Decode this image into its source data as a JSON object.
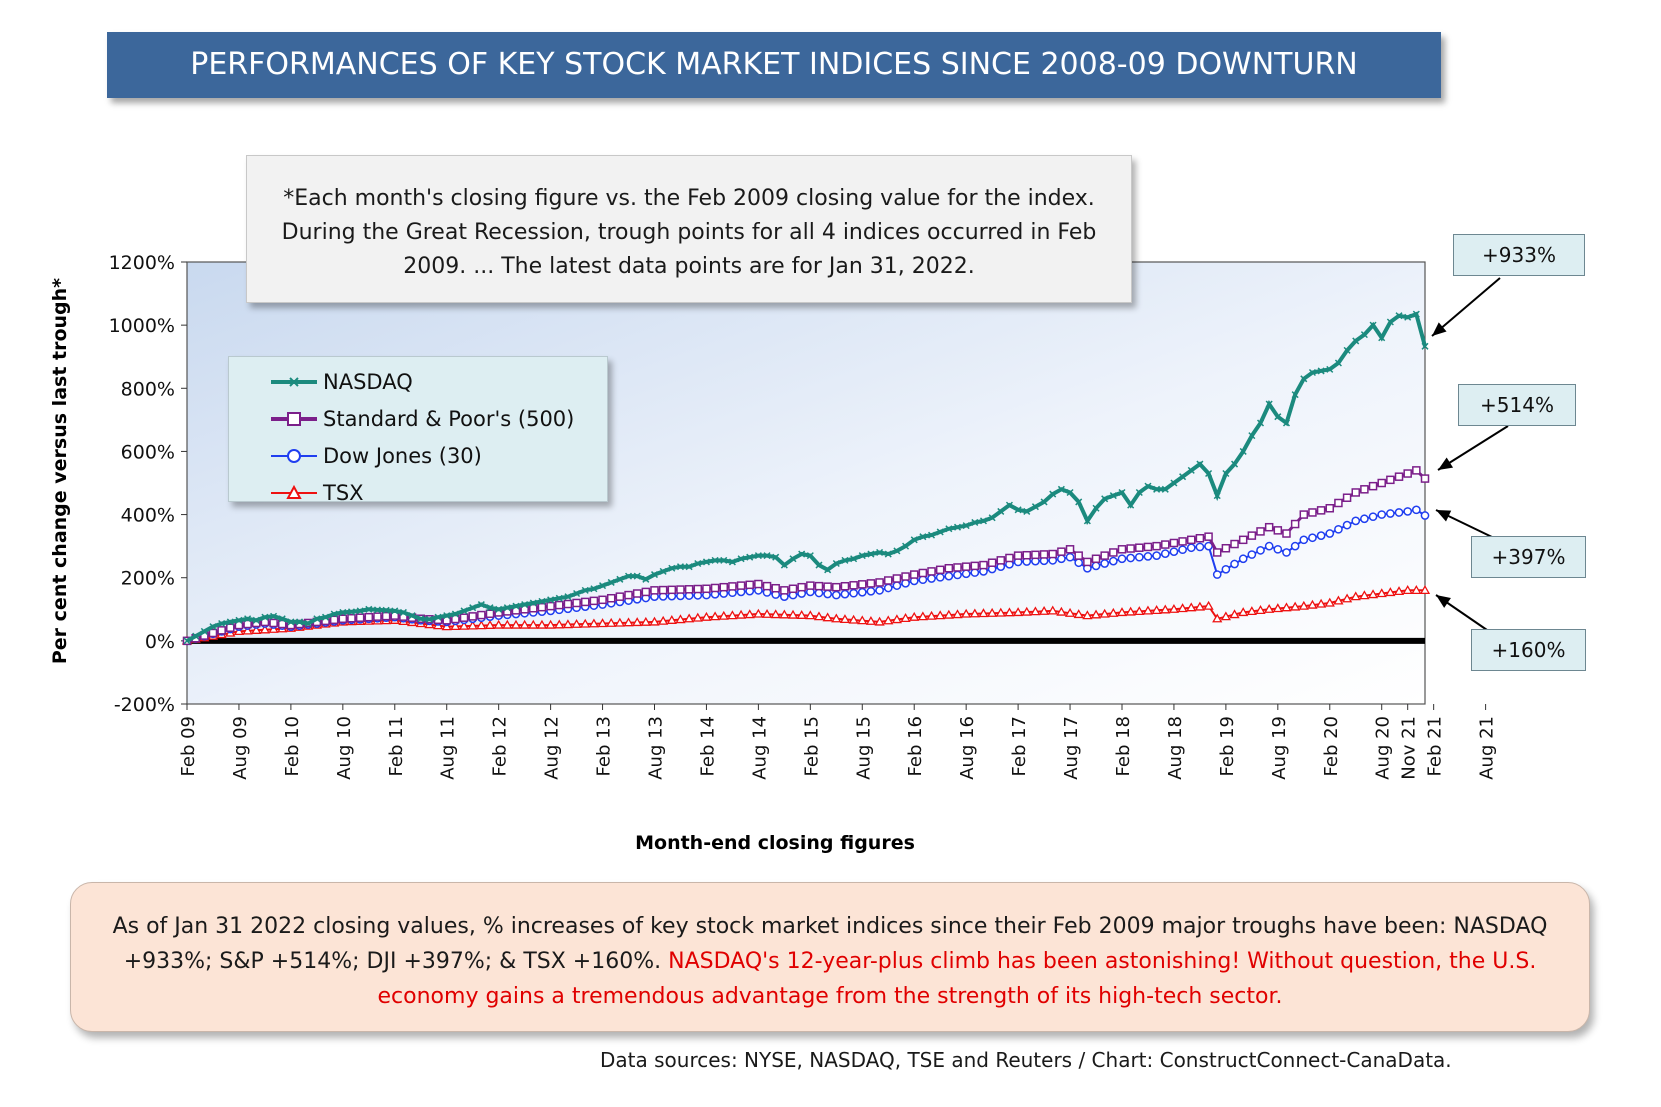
{
  "title": "PERFORMANCES OF KEY STOCK MARKET INDICES SINCE 2008-09 DOWNTURN",
  "note": "*Each month's closing figure vs. the Feb 2009 closing value for the index. During the Great Recession, trough points for all 4 indices occurred in Feb 2009. ... The latest data points are for Jan 31, 2022.",
  "summary": {
    "plain": "As of Jan 31 2022 closing values, % increases of key stock market indices since their Feb 2009 major troughs have been:  NASDAQ +933%; S&P +514%; DJI +397%; & TSX +160%.",
    "highlight": "NASDAQ's 12-year-plus climb has been astonishing! Without question, the U.S. economy gains a tremendous advantage from the strength of its high-tech sector."
  },
  "source": "Data sources: NYSE, NASDAQ, TSE and Reuters / Chart: ConstructConnect-CanaData.",
  "callouts": [
    "+933%",
    "+514%",
    "+397%",
    "+160%"
  ],
  "colors": {
    "nasdaq": "#1b8a7e",
    "sp500": "#7b1f8a",
    "dow": "#1f3ef0",
    "tsx": "#ee1111",
    "banner": "#3c679b"
  },
  "chart_data": {
    "type": "line",
    "xlabel": "Month-end closing figures",
    "ylabel": "Per cent change versus last trough*",
    "ylim": [
      -200,
      1200
    ],
    "yticks": [
      -200,
      0,
      200,
      400,
      600,
      800,
      1000,
      1200
    ],
    "ytick_labels": [
      "-200%",
      "0%",
      "200%",
      "400%",
      "600%",
      "800%",
      "1000%",
      "1200%"
    ],
    "x_start": "Feb 09",
    "x_end": "Jan 22",
    "xtick_labels": [
      "Feb 09",
      "Aug 09",
      "Feb 10",
      "Aug 10",
      "Feb 11",
      "Aug 11",
      "Feb 12",
      "Aug 12",
      "Feb 13",
      "Aug 13",
      "Feb 14",
      "Aug 14",
      "Feb 15",
      "Aug 15",
      "Feb 16",
      "Aug 16",
      "Feb 17",
      "Aug 17",
      "Feb 18",
      "Aug 18",
      "Feb 19",
      "Aug 19",
      "Feb 20",
      "Aug 20",
      "Feb 21",
      "Aug 21",
      "Nov 21"
    ],
    "legend_position": "upper-left",
    "grid": false,
    "series": [
      {
        "name": "NASDAQ",
        "marker": "x",
        "anchors": [
          [
            0,
            0
          ],
          [
            1,
            15
          ],
          [
            2,
            30
          ],
          [
            3,
            45
          ],
          [
            4,
            55
          ],
          [
            5,
            60
          ],
          [
            6,
            65
          ],
          [
            7,
            70
          ],
          [
            8,
            65
          ],
          [
            9,
            75
          ],
          [
            10,
            78
          ],
          [
            11,
            70
          ],
          [
            12,
            60
          ],
          [
            13,
            60
          ],
          [
            14,
            55
          ],
          [
            15,
            70
          ],
          [
            16,
            75
          ],
          [
            17,
            85
          ],
          [
            18,
            90
          ],
          [
            19,
            92
          ],
          [
            20,
            95
          ],
          [
            21,
            100
          ],
          [
            22,
            98
          ],
          [
            23,
            97
          ],
          [
            24,
            95
          ],
          [
            25,
            90
          ],
          [
            26,
            80
          ],
          [
            27,
            70
          ],
          [
            28,
            68
          ],
          [
            29,
            75
          ],
          [
            30,
            80
          ],
          [
            31,
            85
          ],
          [
            32,
            95
          ],
          [
            33,
            105
          ],
          [
            34,
            115
          ],
          [
            35,
            105
          ],
          [
            36,
            100
          ],
          [
            37,
            105
          ],
          [
            38,
            110
          ],
          [
            39,
            115
          ],
          [
            40,
            120
          ],
          [
            41,
            125
          ],
          [
            42,
            130
          ],
          [
            43,
            135
          ],
          [
            44,
            140
          ],
          [
            45,
            150
          ],
          [
            46,
            160
          ],
          [
            47,
            165
          ],
          [
            48,
            175
          ],
          [
            49,
            185
          ],
          [
            50,
            195
          ],
          [
            51,
            205
          ],
          [
            52,
            205
          ],
          [
            53,
            195
          ],
          [
            54,
            210
          ],
          [
            55,
            220
          ],
          [
            56,
            230
          ],
          [
            57,
            235
          ],
          [
            58,
            235
          ],
          [
            59,
            245
          ],
          [
            60,
            250
          ],
          [
            61,
            255
          ],
          [
            62,
            255
          ],
          [
            63,
            250
          ],
          [
            64,
            260
          ],
          [
            65,
            265
          ],
          [
            66,
            270
          ],
          [
            67,
            270
          ],
          [
            68,
            265
          ],
          [
            69,
            240
          ],
          [
            70,
            260
          ],
          [
            71,
            275
          ],
          [
            72,
            270
          ],
          [
            73,
            240
          ],
          [
            74,
            225
          ],
          [
            75,
            245
          ],
          [
            76,
            255
          ],
          [
            77,
            260
          ],
          [
            78,
            270
          ],
          [
            79,
            275
          ],
          [
            80,
            280
          ],
          [
            81,
            275
          ],
          [
            82,
            285
          ],
          [
            83,
            300
          ],
          [
            84,
            320
          ],
          [
            85,
            330
          ],
          [
            86,
            335
          ],
          [
            87,
            345
          ],
          [
            88,
            355
          ],
          [
            89,
            360
          ],
          [
            90,
            365
          ],
          [
            91,
            375
          ],
          [
            92,
            380
          ],
          [
            93,
            390
          ],
          [
            94,
            410
          ],
          [
            95,
            430
          ],
          [
            96,
            415
          ],
          [
            97,
            410
          ],
          [
            98,
            425
          ],
          [
            99,
            440
          ],
          [
            100,
            465
          ],
          [
            101,
            480
          ],
          [
            102,
            470
          ],
          [
            103,
            440
          ],
          [
            104,
            380
          ],
          [
            105,
            420
          ],
          [
            106,
            450
          ],
          [
            107,
            460
          ],
          [
            108,
            470
          ],
          [
            109,
            430
          ],
          [
            110,
            470
          ],
          [
            111,
            490
          ],
          [
            112,
            480
          ],
          [
            113,
            480
          ],
          [
            114,
            500
          ],
          [
            115,
            520
          ],
          [
            116,
            540
          ],
          [
            117,
            560
          ],
          [
            118,
            530
          ],
          [
            119,
            460
          ],
          [
            120,
            530
          ],
          [
            121,
            560
          ],
          [
            122,
            600
          ],
          [
            123,
            650
          ],
          [
            124,
            690
          ],
          [
            125,
            750
          ],
          [
            126,
            710
          ],
          [
            127,
            690
          ],
          [
            128,
            780
          ],
          [
            129,
            830
          ],
          [
            130,
            850
          ],
          [
            131,
            855
          ],
          [
            132,
            860
          ],
          [
            133,
            880
          ],
          [
            134,
            920
          ],
          [
            135,
            950
          ],
          [
            136,
            970
          ],
          [
            137,
            1000
          ],
          [
            138,
            960
          ],
          [
            139,
            1010
          ],
          [
            140,
            1030
          ],
          [
            141,
            1025
          ],
          [
            142,
            1035
          ],
          [
            143,
            933
          ]
        ]
      },
      {
        "name": "Standard & Poor's (500)",
        "marker": "square",
        "anchors": [
          [
            0,
            0
          ],
          [
            6,
            50
          ],
          [
            9,
            60
          ],
          [
            12,
            50
          ],
          [
            18,
            70
          ],
          [
            24,
            80
          ],
          [
            27,
            70
          ],
          [
            30,
            65
          ],
          [
            36,
            90
          ],
          [
            42,
            110
          ],
          [
            48,
            130
          ],
          [
            54,
            160
          ],
          [
            60,
            165
          ],
          [
            66,
            180
          ],
          [
            69,
            160
          ],
          [
            72,
            175
          ],
          [
            75,
            170
          ],
          [
            80,
            185
          ],
          [
            84,
            210
          ],
          [
            88,
            230
          ],
          [
            92,
            240
          ],
          [
            96,
            270
          ],
          [
            100,
            275
          ],
          [
            102,
            290
          ],
          [
            104,
            250
          ],
          [
            108,
            290
          ],
          [
            112,
            300
          ],
          [
            116,
            320
          ],
          [
            118,
            330
          ],
          [
            119,
            280
          ],
          [
            122,
            320
          ],
          [
            125,
            360
          ],
          [
            127,
            340
          ],
          [
            129,
            400
          ],
          [
            132,
            420
          ],
          [
            135,
            470
          ],
          [
            138,
            500
          ],
          [
            141,
            530
          ],
          [
            142,
            540
          ],
          [
            143,
            514
          ]
        ]
      },
      {
        "name": "Dow Jones (30)",
        "marker": "circle",
        "anchors": [
          [
            0,
            0
          ],
          [
            6,
            45
          ],
          [
            9,
            55
          ],
          [
            12,
            45
          ],
          [
            18,
            65
          ],
          [
            24,
            75
          ],
          [
            27,
            65
          ],
          [
            30,
            60
          ],
          [
            36,
            80
          ],
          [
            42,
            95
          ],
          [
            48,
            115
          ],
          [
            54,
            140
          ],
          [
            60,
            145
          ],
          [
            66,
            160
          ],
          [
            69,
            140
          ],
          [
            72,
            155
          ],
          [
            75,
            145
          ],
          [
            80,
            160
          ],
          [
            84,
            190
          ],
          [
            88,
            205
          ],
          [
            92,
            220
          ],
          [
            96,
            250
          ],
          [
            100,
            255
          ],
          [
            102,
            265
          ],
          [
            104,
            230
          ],
          [
            108,
            260
          ],
          [
            112,
            270
          ],
          [
            116,
            295
          ],
          [
            118,
            300
          ],
          [
            119,
            210
          ],
          [
            122,
            260
          ],
          [
            125,
            300
          ],
          [
            127,
            280
          ],
          [
            129,
            320
          ],
          [
            132,
            340
          ],
          [
            135,
            380
          ],
          [
            138,
            400
          ],
          [
            141,
            410
          ],
          [
            142,
            415
          ],
          [
            143,
            397
          ]
        ]
      },
      {
        "name": "TSX",
        "marker": "triangle",
        "anchors": [
          [
            0,
            0
          ],
          [
            6,
            30
          ],
          [
            12,
            40
          ],
          [
            18,
            60
          ],
          [
            24,
            65
          ],
          [
            27,
            55
          ],
          [
            30,
            45
          ],
          [
            36,
            50
          ],
          [
            42,
            50
          ],
          [
            48,
            55
          ],
          [
            54,
            60
          ],
          [
            60,
            75
          ],
          [
            66,
            85
          ],
          [
            72,
            80
          ],
          [
            75,
            70
          ],
          [
            80,
            60
          ],
          [
            84,
            75
          ],
          [
            90,
            85
          ],
          [
            96,
            90
          ],
          [
            100,
            95
          ],
          [
            104,
            80
          ],
          [
            108,
            90
          ],
          [
            114,
            100
          ],
          [
            118,
            110
          ],
          [
            119,
            70
          ],
          [
            122,
            90
          ],
          [
            125,
            100
          ],
          [
            129,
            110
          ],
          [
            132,
            120
          ],
          [
            135,
            140
          ],
          [
            138,
            150
          ],
          [
            141,
            160
          ],
          [
            143,
            160
          ]
        ]
      }
    ]
  }
}
